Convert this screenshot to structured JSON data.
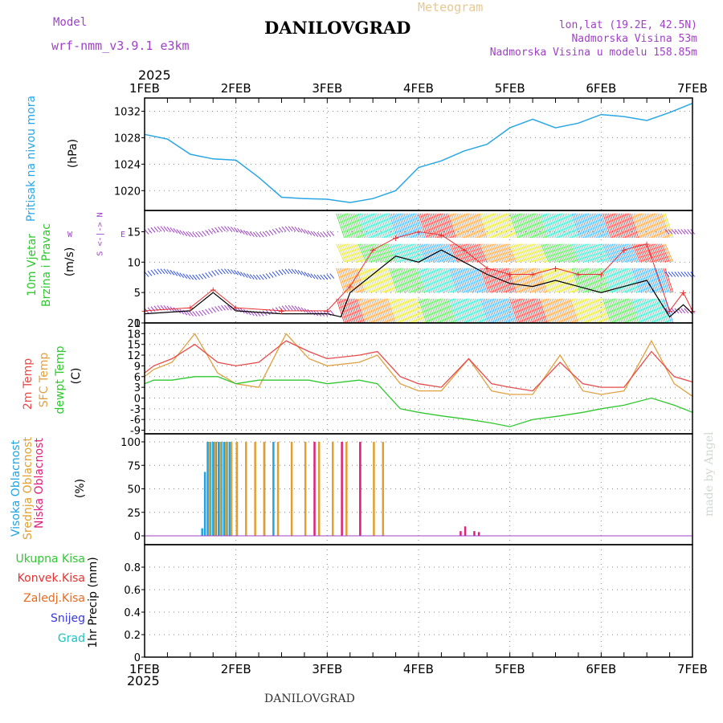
{
  "header": {
    "model_label": "Model",
    "model_name": "wrf-nmm_v3.9.1 e3km",
    "title": "DANILOVGRAD",
    "meteogram": "Meteogram",
    "lonlat": "lon,lat (19.2E, 42.5N)",
    "altitude": "Nadmorska Visina 53m",
    "model_altitude": "Nadmorska Visina u modelu 158.85m",
    "footer_title": "DANILOVGRAD",
    "credit": "made by Angel"
  },
  "time_axis": {
    "year": "2025",
    "labels": [
      "1FEB",
      "2FEB",
      "3FEB",
      "4FEB",
      "5FEB",
      "6FEB",
      "7FEB"
    ]
  },
  "colors": {
    "pressure": "#29a6e6",
    "wind_speed": "#000000",
    "gust": "#e83030",
    "temp2m": "#e84a4a",
    "sfc_temp": "#e0a040",
    "dewpoint": "#2ec82e",
    "high_cloud": "#1ea4e6",
    "mid_cloud": "#e0a030",
    "low_cloud": "#e0207a",
    "purple": "#a040c8"
  },
  "panels": {
    "pressure": {
      "l1": "Pritisak na nivou mora",
      "unit": "(hPa)"
    },
    "wind": {
      "l1": "10m Vjetar",
      "l2": "Brzina i Pravac",
      "unit": "(m/s)",
      "compass_ns": "S <-|-> N",
      "compass_w": "W",
      "compass_e": "E"
    },
    "temp": {
      "l1": "2m Temp",
      "l2": "SFC Temp",
      "l3": "dewpt Temp",
      "unit": "(C)"
    },
    "cloud": {
      "l1": "Visoka Oblacnost",
      "l2": "Srednja Oblacnost",
      "l3": "Niska Oblacnost",
      "unit": "(%)"
    },
    "precip": {
      "l1": "Ukupna Kisa",
      "l2": "Konvek.Kisa",
      "l3": "Zaledj.Kisa",
      "l4": "Snijeg",
      "l5": "Grad",
      "unit": "1hr Precip (mm)"
    }
  },
  "chart_data": [
    {
      "type": "line",
      "title": "Pritisak na nivou mora",
      "ylabel": "(hPa)",
      "ylim": [
        1017,
        1034
      ],
      "yticks": [
        "1020",
        "1024",
        "1028",
        "1032"
      ],
      "series": [
        {
          "name": "pressure",
          "x_days": [
            0,
            0.25,
            0.5,
            0.75,
            1.0,
            1.25,
            1.5,
            1.75,
            2.0,
            2.25,
            2.5,
            2.75,
            3.0,
            3.25,
            3.5,
            3.75,
            4.0,
            4.25,
            4.5,
            4.75,
            5.0,
            5.25,
            5.5,
            5.75,
            6.0
          ],
          "values": [
            1028.5,
            1027.8,
            1025.5,
            1024.8,
            1024.6,
            1022.0,
            1019.0,
            1018.8,
            1018.7,
            1018.2,
            1018.8,
            1020.0,
            1023.5,
            1024.5,
            1026.0,
            1027.0,
            1029.5,
            1030.8,
            1029.5,
            1030.2,
            1031.5,
            1031.2,
            1030.6,
            1031.8,
            1033.2
          ]
        }
      ]
    },
    {
      "type": "line",
      "title": "10m Vjetar Brzina i Pravac",
      "ylabel": "(m/s)",
      "ylim": [
        0,
        18.5
      ],
      "yticks": [
        "0",
        "5",
        "10",
        "15"
      ],
      "series": [
        {
          "name": "wind speed",
          "x_days": [
            0,
            0.5,
            0.75,
            1.0,
            1.5,
            2.0,
            2.15,
            2.25,
            2.5,
            2.75,
            3.0,
            3.25,
            3.5,
            3.75,
            4.0,
            4.25,
            4.5,
            4.75,
            5.0,
            5.25,
            5.5,
            5.75,
            5.9,
            6.0
          ],
          "values": [
            1.5,
            2,
            5,
            2,
            1.5,
            1.5,
            1,
            5,
            8,
            11,
            10,
            12,
            10,
            8,
            6.5,
            6,
            7,
            6,
            5,
            6,
            7,
            1,
            3,
            1.5
          ]
        },
        {
          "name": "gust",
          "x_days": [
            0,
            0.5,
            0.75,
            1.0,
            1.5,
            2.0,
            2.25,
            2.5,
            2.75,
            3.0,
            3.25,
            3.5,
            3.75,
            4.0,
            4.25,
            4.5,
            4.75,
            5.0,
            5.25,
            5.5,
            5.75,
            5.9,
            6.0
          ],
          "values": [
            2,
            2.5,
            5.5,
            2.5,
            2,
            2,
            6,
            12,
            14,
            15,
            14.5,
            12,
            9,
            8,
            8,
            9,
            8,
            8,
            12,
            13,
            2,
            5,
            2
          ]
        }
      ]
    },
    {
      "type": "line",
      "title": "2m Temp / SFC Temp / dewpt Temp",
      "ylabel": "(C)",
      "ylim": [
        -10,
        21
      ],
      "yticks": [
        "21",
        "18",
        "15",
        "12",
        "9",
        "6",
        "3",
        "0",
        "-3",
        "-6",
        "-9"
      ],
      "series": [
        {
          "name": "2m Temp",
          "x_days": [
            0,
            0.1,
            0.3,
            0.55,
            0.8,
            1.0,
            1.25,
            1.55,
            1.8,
            2.0,
            2.35,
            2.55,
            2.8,
            3.0,
            3.25,
            3.55,
            3.8,
            4.0,
            4.25,
            4.55,
            4.8,
            5.0,
            5.25,
            5.55,
            5.8,
            6.0
          ],
          "values": [
            7,
            9,
            11,
            15,
            10,
            9,
            10,
            16,
            13,
            11,
            12,
            13,
            6,
            4,
            3,
            11,
            4,
            3,
            2,
            10,
            4,
            3,
            3,
            13,
            6,
            4.5
          ]
        },
        {
          "name": "SFC Temp",
          "x_days": [
            0,
            0.1,
            0.3,
            0.55,
            0.8,
            1.0,
            1.25,
            1.55,
            1.8,
            2.0,
            2.35,
            2.55,
            2.8,
            3.0,
            3.25,
            3.55,
            3.8,
            4.0,
            4.25,
            4.55,
            4.8,
            5.0,
            5.25,
            5.55,
            5.8,
            6.0
          ],
          "values": [
            6,
            8,
            10,
            18,
            7,
            4,
            3,
            18,
            11,
            9,
            10,
            12,
            4,
            2,
            2,
            11,
            2,
            1,
            1,
            12,
            2,
            1,
            2,
            16,
            4,
            0.5
          ]
        },
        {
          "name": "dewpt Temp",
          "x_days": [
            0,
            0.1,
            0.3,
            0.55,
            0.8,
            1.0,
            1.25,
            1.55,
            1.8,
            2.0,
            2.35,
            2.55,
            2.8,
            3.0,
            3.25,
            3.55,
            3.8,
            4.0,
            4.25,
            4.55,
            4.8,
            5.0,
            5.25,
            5.55,
            5.8,
            6.0
          ],
          "values": [
            4,
            5,
            5,
            6,
            6,
            4,
            5,
            5,
            5,
            4,
            5,
            4,
            -3,
            -4,
            -5,
            -6,
            -7,
            -8,
            -6,
            -5,
            -4,
            -3,
            -2,
            0,
            -2,
            -4
          ]
        }
      ]
    },
    {
      "type": "bar",
      "title": "Oblacnost",
      "ylabel": "(%)",
      "ylim": [
        0,
        100
      ],
      "yticks": [
        "0",
        "25",
        "50",
        "75",
        "100"
      ],
      "series": [
        {
          "name": "Visoka Oblacnost",
          "x_days": [
            0.62,
            0.65,
            0.68,
            0.71,
            0.74,
            0.77,
            0.8,
            0.83,
            0.86,
            0.89,
            0.92,
            1.0,
            1.3,
            1.4
          ],
          "values": [
            8,
            68,
            100,
            100,
            100,
            100,
            100,
            100,
            100,
            100,
            100,
            100,
            100,
            100
          ]
        },
        {
          "name": "Srednja Oblacnost",
          "x_days": [
            0.7,
            0.76,
            0.82,
            0.88,
            0.94,
            1.0,
            1.1,
            1.2,
            1.3,
            1.45,
            1.6,
            1.75,
            1.9,
            2.05,
            2.2,
            2.35,
            2.5,
            2.6
          ],
          "values": [
            100,
            100,
            100,
            100,
            100,
            100,
            100,
            100,
            100,
            100,
            100,
            100,
            100,
            100,
            100,
            100,
            100,
            100
          ]
        },
        {
          "name": "Niska Oblacnost",
          "x_days": [
            1.85,
            2.15,
            2.35,
            3.45,
            3.5,
            3.6,
            3.65
          ],
          "values": [
            100,
            100,
            100,
            5,
            10,
            5,
            4
          ]
        }
      ]
    },
    {
      "type": "bar",
      "title": "1hr Precip",
      "ylabel": "(mm)",
      "ylim": [
        0,
        1
      ],
      "yticks": [
        "0",
        "0.2",
        "0.4",
        "0.6",
        "0.8"
      ],
      "series": [
        {
          "name": "Ukupna Kisa",
          "x_days": [],
          "values": []
        }
      ]
    }
  ]
}
